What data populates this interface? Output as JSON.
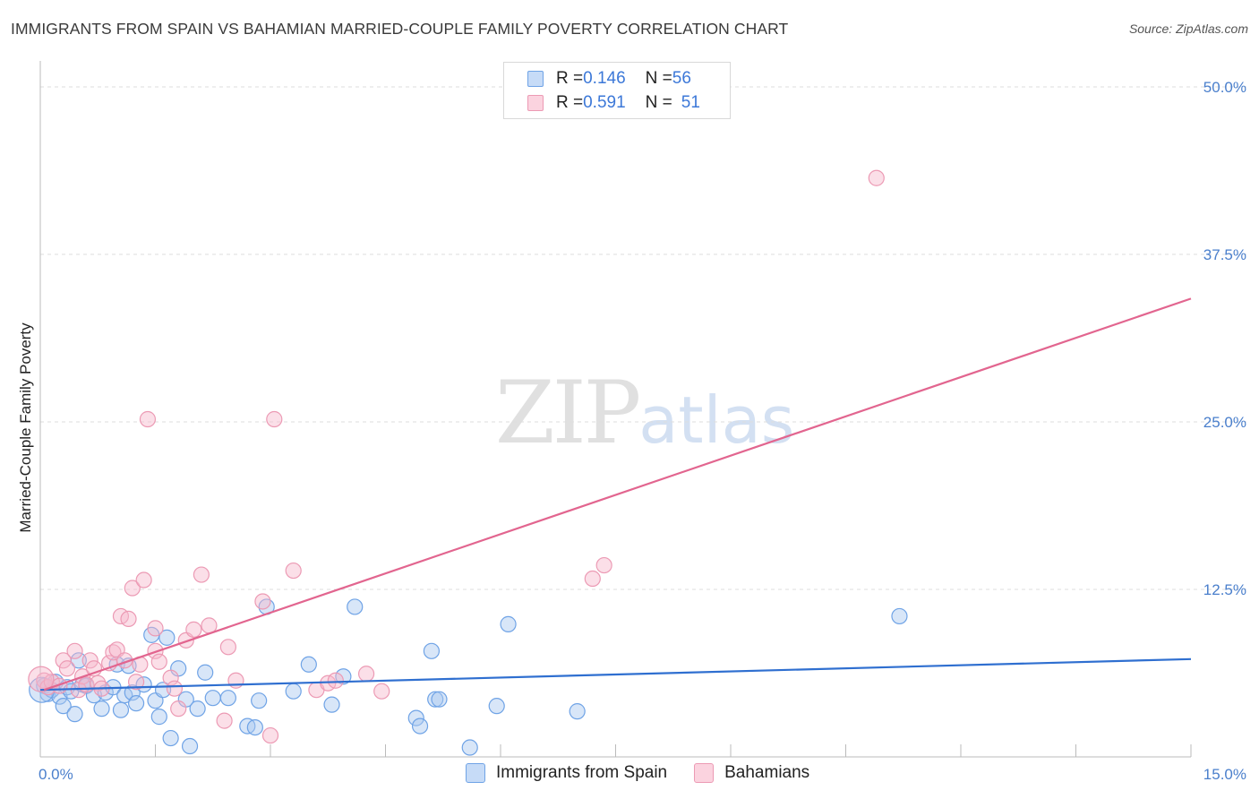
{
  "header": {
    "title": "IMMIGRANTS FROM SPAIN VS BAHAMIAN MARRIED-COUPLE FAMILY POVERTY CORRELATION CHART",
    "source": "Source: ZipAtlas.com"
  },
  "watermark": {
    "zip": "ZIP",
    "atlas": "atlas"
  },
  "legend": {
    "rows": [
      {
        "r_label": "R = ",
        "r_value": "0.146",
        "n_label": "N = ",
        "n_value": "56",
        "color": "#a9c8f0"
      },
      {
        "r_label": "R = ",
        "r_value": "0.591",
        "n_label": "N = ",
        "n_value": "51",
        "color": "#f6b8cb"
      }
    ]
  },
  "bottom_legend": {
    "items": [
      {
        "label": "Immigrants from Spain",
        "color": "#a9c8f0"
      },
      {
        "label": "Bahamians",
        "color": "#f6b8cb"
      }
    ]
  },
  "chart_data": {
    "type": "scatter",
    "title": "IMMIGRANTS FROM SPAIN VS BAHAMIAN MARRIED-COUPLE FAMILY POVERTY CORRELATION CHART",
    "xlabel": "",
    "ylabel": "Married-Couple Family Poverty",
    "xlim": [
      0,
      15
    ],
    "ylim": [
      0,
      50
    ],
    "x_tick_labels": [
      "0.0%",
      "15.0%"
    ],
    "y_ticks": [
      12.5,
      25.0,
      37.5,
      50.0
    ],
    "y_tick_labels": [
      "12.5%",
      "25.0%",
      "37.5%",
      "50.0%"
    ],
    "grid": true,
    "series": [
      {
        "name": "Immigrants from Spain",
        "color": "#6fa3e6",
        "fill": "#a9c8f0",
        "trend_color": "#2f6fd0",
        "trend": [
          [
            0,
            5.0
          ],
          [
            15,
            7.3
          ]
        ],
        "points": [
          [
            0.05,
            5.3
          ],
          [
            0.1,
            4.7
          ],
          [
            0.15,
            5.0
          ],
          [
            0.2,
            5.6
          ],
          [
            0.25,
            4.5
          ],
          [
            0.3,
            3.8
          ],
          [
            0.35,
            5.2
          ],
          [
            0.4,
            4.9
          ],
          [
            0.45,
            3.2
          ],
          [
            0.5,
            7.2
          ],
          [
            0.55,
            5.4
          ],
          [
            0.6,
            5.3
          ],
          [
            0.7,
            4.6
          ],
          [
            0.8,
            3.6
          ],
          [
            0.85,
            4.8
          ],
          [
            0.95,
            5.2
          ],
          [
            1.0,
            6.9
          ],
          [
            1.05,
            3.5
          ],
          [
            1.1,
            4.6
          ],
          [
            1.15,
            6.8
          ],
          [
            1.2,
            4.8
          ],
          [
            1.25,
            4.0
          ],
          [
            1.35,
            5.4
          ],
          [
            1.45,
            9.1
          ],
          [
            1.5,
            4.2
          ],
          [
            1.55,
            3.0
          ],
          [
            1.6,
            5.0
          ],
          [
            1.65,
            8.9
          ],
          [
            1.7,
            1.4
          ],
          [
            1.8,
            6.6
          ],
          [
            1.9,
            4.3
          ],
          [
            1.95,
            0.8
          ],
          [
            2.05,
            3.6
          ],
          [
            2.15,
            6.3
          ],
          [
            2.25,
            4.4
          ],
          [
            2.45,
            4.4
          ],
          [
            2.7,
            2.3
          ],
          [
            2.8,
            2.2
          ],
          [
            2.85,
            4.2
          ],
          [
            2.95,
            11.2
          ],
          [
            3.3,
            4.9
          ],
          [
            3.5,
            6.9
          ],
          [
            3.8,
            3.9
          ],
          [
            3.95,
            6.0
          ],
          [
            4.1,
            11.2
          ],
          [
            4.9,
            2.9
          ],
          [
            4.95,
            2.3
          ],
          [
            5.1,
            7.9
          ],
          [
            5.15,
            4.3
          ],
          [
            5.2,
            4.3
          ],
          [
            5.6,
            0.7
          ],
          [
            5.95,
            3.8
          ],
          [
            6.1,
            9.9
          ],
          [
            7.0,
            3.4
          ],
          [
            11.2,
            10.5
          ],
          [
            0.02,
            5.0
          ]
        ]
      },
      {
        "name": "Bahamians",
        "color": "#ec9ab4",
        "fill": "#f6b8cb",
        "trend_color": "#e2658f",
        "trend": [
          [
            0.05,
            5.0
          ],
          [
            15,
            34.2
          ]
        ],
        "points": [
          [
            0.05,
            5.7
          ],
          [
            0.1,
            5.2
          ],
          [
            0.15,
            5.6
          ],
          [
            0.25,
            5.3
          ],
          [
            0.3,
            7.2
          ],
          [
            0.35,
            6.6
          ],
          [
            0.45,
            7.9
          ],
          [
            0.5,
            5.0
          ],
          [
            0.55,
            6.0
          ],
          [
            0.6,
            5.4
          ],
          [
            0.65,
            7.2
          ],
          [
            0.7,
            6.6
          ],
          [
            0.75,
            5.5
          ],
          [
            0.8,
            5.1
          ],
          [
            0.9,
            7.0
          ],
          [
            0.95,
            7.8
          ],
          [
            1.0,
            8.0
          ],
          [
            1.05,
            10.5
          ],
          [
            1.1,
            7.2
          ],
          [
            1.15,
            10.3
          ],
          [
            1.2,
            12.6
          ],
          [
            1.25,
            5.6
          ],
          [
            1.3,
            6.9
          ],
          [
            1.35,
            13.2
          ],
          [
            1.4,
            25.2
          ],
          [
            1.5,
            9.6
          ],
          [
            1.5,
            7.9
          ],
          [
            1.55,
            7.1
          ],
          [
            1.7,
            5.9
          ],
          [
            1.75,
            5.1
          ],
          [
            1.8,
            3.6
          ],
          [
            1.9,
            8.7
          ],
          [
            2.0,
            9.5
          ],
          [
            2.1,
            13.6
          ],
          [
            2.2,
            9.8
          ],
          [
            2.4,
            2.7
          ],
          [
            2.45,
            8.2
          ],
          [
            2.55,
            5.7
          ],
          [
            2.9,
            11.6
          ],
          [
            3.0,
            1.6
          ],
          [
            3.05,
            25.2
          ],
          [
            3.3,
            13.9
          ],
          [
            3.6,
            5.0
          ],
          [
            3.75,
            5.5
          ],
          [
            3.85,
            5.7
          ],
          [
            4.25,
            6.2
          ],
          [
            4.45,
            4.9
          ],
          [
            7.2,
            13.3
          ],
          [
            7.35,
            14.3
          ],
          [
            10.9,
            43.2
          ],
          [
            0.01,
            5.8
          ]
        ]
      }
    ]
  }
}
